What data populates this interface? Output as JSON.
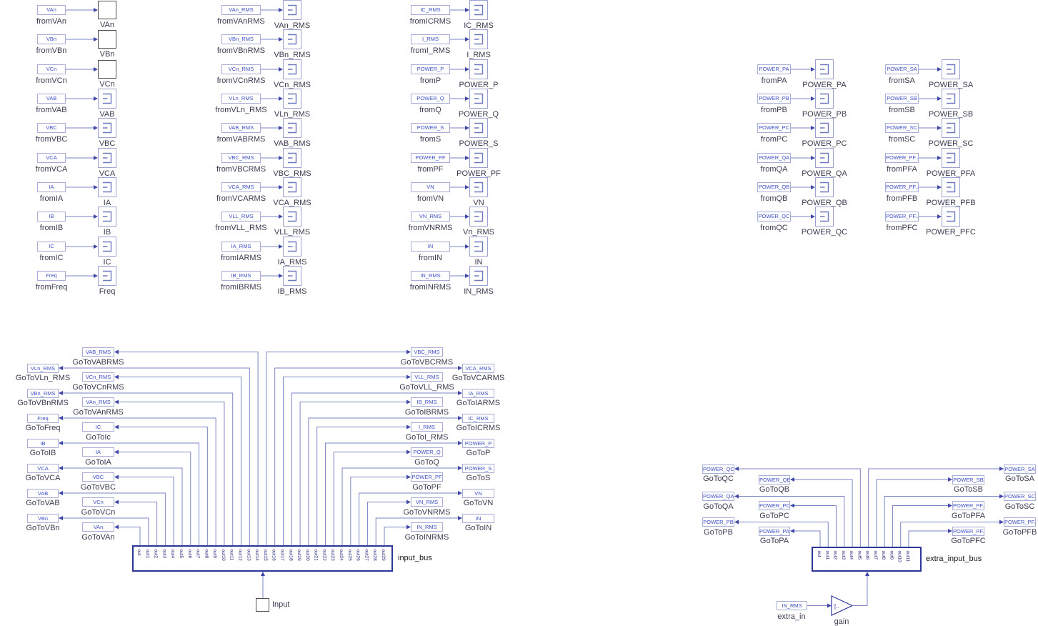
{
  "colors": {
    "wire": "#7d86c4",
    "arrow": "#3f47a8",
    "tag_border": "#a6aed8",
    "tag_text": "#3c4fc5",
    "scope_border": "#99a2d0",
    "scope_icon": "#6f79bd",
    "square_border": "#4f4f4f",
    "caption_text": "#3b3b52",
    "bus_border": "#2c3697",
    "port_label": "#2b2b7e"
  },
  "scope_columns": [
    {
      "items": [
        {
          "tag": "VAn",
          "from": "fromVAn",
          "scope": "VAn",
          "type": "square"
        },
        {
          "tag": "VBn",
          "from": "fromVBn",
          "scope": "VBn",
          "type": "square"
        },
        {
          "tag": "VCn",
          "from": "fromVCn",
          "scope": "VCn",
          "type": "square"
        },
        {
          "tag": "VAB",
          "from": "fromVAB",
          "scope": "VAB",
          "type": "scope"
        },
        {
          "tag": "VBC",
          "from": "fromVBC",
          "scope": "VBC",
          "type": "scope"
        },
        {
          "tag": "VCA",
          "from": "fromVCA",
          "scope": "VCA",
          "type": "scope"
        },
        {
          "tag": "IA",
          "from": "fromIA",
          "scope": "IA",
          "type": "scope"
        },
        {
          "tag": "IB",
          "from": "fromIB",
          "scope": "IB",
          "type": "scope"
        },
        {
          "tag": "IC",
          "from": "fromIC",
          "scope": "IC",
          "type": "scope"
        },
        {
          "tag": "Freq",
          "from": "fromFreq",
          "scope": "Freq",
          "type": "scope"
        }
      ]
    },
    {
      "items": [
        {
          "tag": "VAn_RMS",
          "from": "fromVAnRMS",
          "scope": "VAn_RMS",
          "type": "scope"
        },
        {
          "tag": "VBn_RMS",
          "from": "fromVBnRMS",
          "scope": "VBn_RMS",
          "type": "scope"
        },
        {
          "tag": "VCn_RMS",
          "from": "fromVCnRMS",
          "scope": "VCn_RMS",
          "type": "scope"
        },
        {
          "tag": "VLn_RMS",
          "from": "fromVLn_RMS",
          "scope": "VLn_RMS",
          "type": "scope"
        },
        {
          "tag": "VAB_RMS",
          "from": "fromVABRMS",
          "scope": "VAB_RMS",
          "type": "scope"
        },
        {
          "tag": "VBC_RMS",
          "from": "fromVBCRMS",
          "scope": "VBC_RMS",
          "type": "scope"
        },
        {
          "tag": "VCA_RMS",
          "from": "fromVCARMS",
          "scope": "VCA_RMS",
          "type": "scope"
        },
        {
          "tag": "VLL_RMS",
          "from": "fromVLL_RMS",
          "scope": "VLL_RMS",
          "type": "scope"
        },
        {
          "tag": "IA_RMS",
          "from": "fromIARMS",
          "scope": "IA_RMS",
          "type": "scope"
        },
        {
          "tag": "IB_RMS",
          "from": "fromIBRMS",
          "scope": "IB_RMS",
          "type": "scope"
        }
      ]
    },
    {
      "items": [
        {
          "tag": "IC_RMS",
          "from": "fromICRMS",
          "scope": "IC_RMS",
          "type": "scope"
        },
        {
          "tag": "I_RMS",
          "from": "fromI_RMS",
          "scope": "I_RMS",
          "type": "scope"
        },
        {
          "tag": "POWER_P",
          "from": "fromP",
          "scope": "POWER_P",
          "type": "scope"
        },
        {
          "tag": "POWER_Q",
          "from": "fromQ",
          "scope": "POWER_Q",
          "type": "scope"
        },
        {
          "tag": "POWER_S",
          "from": "fromS",
          "scope": "POWER_S",
          "type": "scope"
        },
        {
          "tag": "POWER_PF",
          "from": "fromPF",
          "scope": "POWER_PF",
          "type": "scope"
        },
        {
          "tag": "VN",
          "from": "fromVN",
          "scope": "VN",
          "type": "scope"
        },
        {
          "tag": "VN_RMS",
          "from": "fromVNRMS",
          "scope": "Vn_RMS",
          "type": "scope"
        },
        {
          "tag": "IN",
          "from": "fromIN",
          "scope": "IN",
          "type": "scope"
        },
        {
          "tag": "IN_RMS",
          "from": "fromINRMS",
          "scope": "IN_RMS",
          "type": "scope"
        }
      ]
    },
    {
      "items": [
        {
          "tag": "POWER_PA",
          "from": "fromPA",
          "scope": "POWER_PA",
          "type": "scope"
        },
        {
          "tag": "POWER_PB",
          "from": "fromPB",
          "scope": "POWER_PB",
          "type": "scope"
        },
        {
          "tag": "POWER_PC",
          "from": "fromPC",
          "scope": "POWER_PC",
          "type": "scope"
        },
        {
          "tag": "POWER_QA",
          "from": "fromQA",
          "scope": "POWER_QA",
          "type": "scope"
        },
        {
          "tag": "POWER_QB",
          "from": "fromQB",
          "scope": "POWER_QB",
          "type": "scope"
        },
        {
          "tag": "POWER_QC",
          "from": "fromQC",
          "scope": "POWER_QC",
          "type": "scope"
        }
      ]
    },
    {
      "items": [
        {
          "tag": "POWER_SA",
          "from": "fromSA",
          "scope": "POWER_SA",
          "type": "scope"
        },
        {
          "tag": "POWER_SB",
          "from": "fromSB",
          "scope": "POWER_SB",
          "type": "scope"
        },
        {
          "tag": "POWER_SC",
          "from": "fromSC",
          "scope": "POWER_SC",
          "type": "scope"
        },
        {
          "tag": "POWER_PF..",
          "from": "fromPFA",
          "scope": "POWER_PFA",
          "type": "scope"
        },
        {
          "tag": "POWER_PF..",
          "from": "fromPFB",
          "scope": "POWER_PFB",
          "type": "scope"
        },
        {
          "tag": "POWER_PF..",
          "from": "fromPFC",
          "scope": "POWER_PFC",
          "type": "scope"
        }
      ]
    }
  ],
  "input_bus": {
    "label": "input_bus",
    "source_label": "Input",
    "ports": [
      "out",
      "out1",
      "out2",
      "out3",
      "out4",
      "out5",
      "out6",
      "out7",
      "out8",
      "out9",
      "out10",
      "out11",
      "out12",
      "out13",
      "out14",
      "out15",
      "out16",
      "out17",
      "out18",
      "out19",
      "out20",
      "out21",
      "out22",
      "out23",
      "out24",
      "out25",
      "out26",
      "out27",
      "out28",
      "out29"
    ],
    "left_goto": [
      {
        "tag": "VAB_RMS",
        "caption": "GoToVABRMS",
        "col": "inner"
      },
      {
        "tag": "VLn_RMS",
        "caption": "GoToVLn_RMS",
        "col": "outer"
      },
      {
        "tag": "VCn_RMS",
        "caption": "GoToVCnRMS",
        "col": "inner"
      },
      {
        "tag": "VBn_RMS",
        "caption": "GoToVBnRMS",
        "col": "outer"
      },
      {
        "tag": "VAn_RMS",
        "caption": "GoToVAnRMS",
        "col": "inner"
      },
      {
        "tag": "Freq",
        "caption": "GoToFreq",
        "col": "outer"
      },
      {
        "tag": "IC",
        "caption": "GoToIc",
        "col": "inner"
      },
      {
        "tag": "IB",
        "caption": "GoToIB",
        "col": "outer"
      },
      {
        "tag": "IA",
        "caption": "GoToIA",
        "col": "inner"
      },
      {
        "tag": "VCA",
        "caption": "GoToVCA",
        "col": "outer"
      },
      {
        "tag": "VBC",
        "caption": "GoToVBC",
        "col": "inner"
      },
      {
        "tag": "VAB",
        "caption": "GoToVAB",
        "col": "outer"
      },
      {
        "tag": "VCn",
        "caption": "GoToVCn",
        "col": "inner"
      },
      {
        "tag": "VBn",
        "caption": "GoToVBn",
        "col": "outer"
      },
      {
        "tag": "VAn",
        "caption": "GoToVAn",
        "col": "inner"
      }
    ],
    "right_goto": [
      {
        "tag": "VBC_RMS",
        "caption": "GoToVBCRMS",
        "col": "inner"
      },
      {
        "tag": "VCA_RMS",
        "caption": "GoToVCARMS",
        "col": "outer"
      },
      {
        "tag": "VLL_RMS",
        "caption": "GoToVLL_RMS",
        "col": "inner"
      },
      {
        "tag": "IA_RMS",
        "caption": "GoToIARMS",
        "col": "outer"
      },
      {
        "tag": "IB_RMS",
        "caption": "GoToIBRMS",
        "col": "inner"
      },
      {
        "tag": "IC_RMS",
        "caption": "GoToICRMS",
        "col": "outer"
      },
      {
        "tag": "I_RMS",
        "caption": "GoToI_RMS",
        "col": "inner"
      },
      {
        "tag": "POWER_P",
        "caption": "GoToP",
        "col": "outer"
      },
      {
        "tag": "POWER_Q",
        "caption": "GoToQ",
        "col": "inner"
      },
      {
        "tag": "POWER_S",
        "caption": "GoToS",
        "col": "outer"
      },
      {
        "tag": "POWER_PF",
        "caption": "GoToPF",
        "col": "inner"
      },
      {
        "tag": "VN",
        "caption": "GoToVN",
        "col": "outer"
      },
      {
        "tag": "VN_RMS",
        "caption": "GoToVNRMS",
        "col": "inner"
      },
      {
        "tag": "IN",
        "caption": "GoToIN",
        "col": "outer"
      },
      {
        "tag": "IN_RMS",
        "caption": "GoToINRMS",
        "col": "inner"
      }
    ]
  },
  "extra_bus": {
    "label": "extra_input_bus",
    "ports": [
      "out",
      "out1",
      "out2",
      "out3",
      "out4",
      "out5",
      "out6",
      "out7",
      "out8",
      "out9",
      "out10",
      "out11"
    ],
    "left_goto": [
      {
        "tag": "POWER_QC",
        "caption": "GoToQC",
        "col": "outer"
      },
      {
        "tag": "POWER_QB",
        "caption": "GoToQB",
        "col": "inner"
      },
      {
        "tag": "POWER_QA",
        "caption": "GoToQA",
        "col": "outer"
      },
      {
        "tag": "POWER_PC",
        "caption": "GoToPC",
        "col": "inner"
      },
      {
        "tag": "POWER_PB",
        "caption": "GoToPB",
        "col": "outer"
      },
      {
        "tag": "POWER_PA",
        "caption": "GoToPA",
        "col": "inner"
      }
    ],
    "right_goto": [
      {
        "tag": "POWER_SA",
        "caption": "GoToSA",
        "col": "outer"
      },
      {
        "tag": "POWER_SB",
        "caption": "GoToSB",
        "col": "inner"
      },
      {
        "tag": "POWER_SC",
        "caption": "GoToSC",
        "col": "outer"
      },
      {
        "tag": "POWER_PF..",
        "caption": "GoToPFA",
        "col": "inner"
      },
      {
        "tag": "POWER_PF..",
        "caption": "GoToPFB",
        "col": "outer"
      },
      {
        "tag": "POWER_PF..",
        "caption": "GoToPFC",
        "col": "inner"
      }
    ],
    "extra_in": {
      "tag": "IN_RMS",
      "caption": "extra_in"
    },
    "gain": {
      "display": "[..",
      "caption": "gain"
    }
  }
}
